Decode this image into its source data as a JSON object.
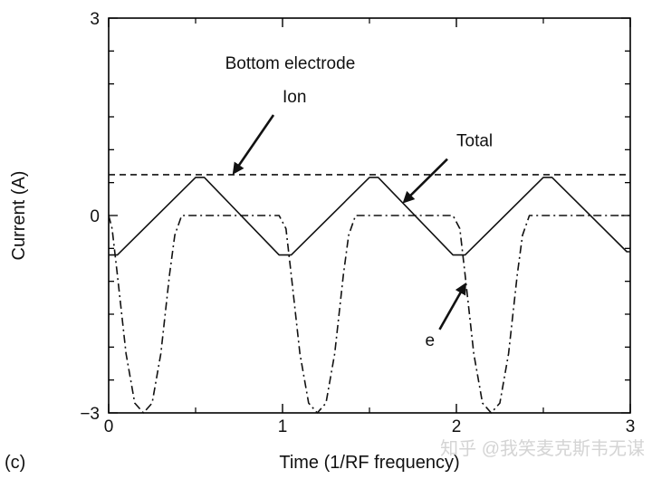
{
  "chart_data": {
    "type": "line",
    "panel_label": "(c)",
    "title": "",
    "xlabel": "Time (1/RF frequency)",
    "ylabel": "Current (A)",
    "xlim": [
      0,
      3
    ],
    "ylim": [
      -3,
      3
    ],
    "x_ticks": [
      0,
      1,
      2,
      3
    ],
    "x_tick_labels": [
      "0",
      "1",
      "2",
      "3"
    ],
    "y_ticks": [
      -3,
      0,
      3
    ],
    "y_tick_labels": [
      "−3",
      "0",
      "3"
    ],
    "grid": false,
    "legend": "none",
    "annotations": [
      {
        "text": "Bottom electrode",
        "x": 0.67,
        "y": 2.23
      },
      {
        "text": "Ion",
        "x": 1.0,
        "y": 1.72,
        "arrow_to": {
          "x": 0.72,
          "y": 0.65
        }
      },
      {
        "text": "Total",
        "x": 2.0,
        "y": 1.05,
        "arrow_to": {
          "x": 1.7,
          "y": 0.21
        }
      },
      {
        "text": "e",
        "x": 1.82,
        "y": -1.98,
        "arrow_to": {
          "x": 2.05,
          "y": -1.05
        }
      }
    ],
    "series": [
      {
        "name": "Ion",
        "style": "dashed",
        "x": [
          0,
          3
        ],
        "y": [
          0.62,
          0.62
        ]
      },
      {
        "name": "Total",
        "style": "solid",
        "x": [
          0,
          0.05,
          0.5,
          0.55,
          0.98,
          1.05,
          1.5,
          1.55,
          1.98,
          2.05,
          2.5,
          2.55,
          2.98,
          3.0
        ],
        "y": [
          -0.6,
          -0.6,
          0.58,
          0.58,
          -0.6,
          -0.6,
          0.58,
          0.58,
          -0.6,
          -0.6,
          0.58,
          0.58,
          -0.55,
          -0.55
        ]
      },
      {
        "name": "e",
        "style": "dashdot",
        "x": [
          0,
          0.02,
          0.05,
          0.1,
          0.15,
          0.2,
          0.25,
          0.3,
          0.35,
          0.38,
          0.42,
          0.6,
          0.98,
          1.02,
          1.05,
          1.1,
          1.15,
          1.2,
          1.25,
          1.3,
          1.35,
          1.38,
          1.42,
          1.6,
          1.98,
          2.02,
          2.05,
          2.1,
          2.15,
          2.2,
          2.25,
          2.3,
          2.35,
          2.38,
          2.42,
          2.6,
          3.0
        ],
        "y": [
          0,
          -0.2,
          -0.9,
          -2.1,
          -2.85,
          -3.0,
          -2.85,
          -2.1,
          -0.9,
          -0.3,
          0,
          0,
          0,
          -0.2,
          -0.9,
          -2.1,
          -2.85,
          -3.0,
          -2.85,
          -2.1,
          -0.9,
          -0.3,
          0,
          0,
          0,
          -0.2,
          -0.9,
          -2.1,
          -2.85,
          -3.0,
          -2.85,
          -2.1,
          -0.9,
          -0.3,
          0,
          0,
          0
        ]
      }
    ]
  },
  "watermark": "知乎 @我笑麦克斯韦无谋"
}
